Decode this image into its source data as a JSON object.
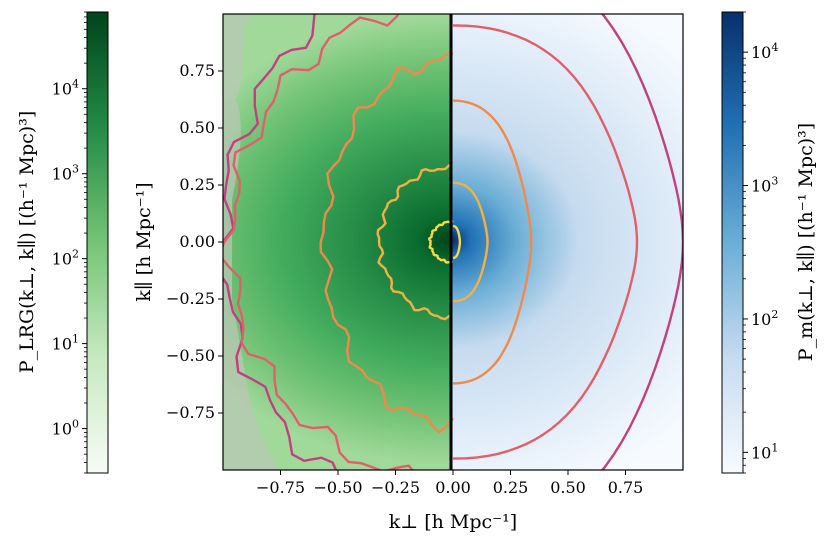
{
  "chart_data": {
    "type": "heatmap",
    "panels": [
      {
        "name": "LRG",
        "x_range": [
          -1.0,
          0.0
        ],
        "colormap": "Greens"
      },
      {
        "name": "m",
        "x_range": [
          0.0,
          1.0
        ],
        "colormap": "Blues"
      }
    ],
    "xlabel": "k⊥ [h Mpc⁻¹]",
    "ylabel": "k∥ [h Mpc⁻¹]",
    "xlim": [
      -1.0,
      1.0
    ],
    "ylim": [
      -1.0,
      1.0
    ],
    "x_ticks": [
      "−0.75",
      "−0.50",
      "−0.25",
      "0.00",
      "0.25",
      "0.50",
      "0.75"
    ],
    "x_tick_values": [
      -0.75,
      -0.5,
      -0.25,
      0.0,
      0.25,
      0.5,
      0.75
    ],
    "y_ticks": [
      "0.75",
      "0.50",
      "0.25",
      "0.00",
      "−0.25",
      "−0.50",
      "−0.75"
    ],
    "y_tick_values": [
      0.75,
      0.5,
      0.25,
      0.0,
      -0.25,
      -0.5,
      -0.75
    ],
    "colorbar_left": {
      "label": "P_LRG(k⊥, k∥) [(h⁻¹ Mpc)³]",
      "scale": "log",
      "range": [
        0.3,
        80000
      ],
      "tick_exponents": [
        0,
        1,
        2,
        3,
        4
      ],
      "colors": [
        "#f7fcf5",
        "#c7e9c0",
        "#74c476",
        "#238b45",
        "#00441b"
      ]
    },
    "colorbar_right": {
      "label": "P_m(k⊥, k∥) [(h⁻¹ Mpc)³]",
      "scale": "log",
      "range": [
        7,
        20000
      ],
      "tick_exponents": [
        1,
        2,
        3,
        4
      ],
      "colors": [
        "#f7fbff",
        "#c6dbef",
        "#6baed6",
        "#2171b5",
        "#08306b"
      ]
    },
    "contour_colors": [
      "#c2407f",
      "#e0606a",
      "#f08a4b",
      "#f5b042",
      "#f4dc47"
    ],
    "contours_lrg_kpar_extent": [
      {
        "level": 1,
        "color": "#c2407f",
        "kperp_at_kpar0": -1.0
      },
      {
        "level": 2,
        "color": "#e0606a",
        "kperp_at_kpar0": -0.97
      },
      {
        "level": 3,
        "color": "#f08a4b",
        "kperp_at_kpar0": -0.56
      },
      {
        "level": 4,
        "color": "#f5b042",
        "kperp_at_kpar0": -0.32
      },
      {
        "level": 5,
        "color": "#f4dc47",
        "kperp_at_kpar0": -0.1
      }
    ],
    "contours_m_kpar_extent": [
      {
        "level": 1,
        "color": "#c2407f",
        "kperp_at_kpar0": 1.0
      },
      {
        "level": 2,
        "color": "#e0606a",
        "kperp_at_kpar0": 0.8
      },
      {
        "level": 3,
        "color": "#f08a4b",
        "kperp_at_kpar0": 0.34
      },
      {
        "level": 4,
        "color": "#f5b042",
        "kperp_at_kpar0": 0.15
      },
      {
        "level": 5,
        "color": "#f4dc47",
        "kperp_at_kpar0": 0.03
      }
    ],
    "grid": false
  }
}
